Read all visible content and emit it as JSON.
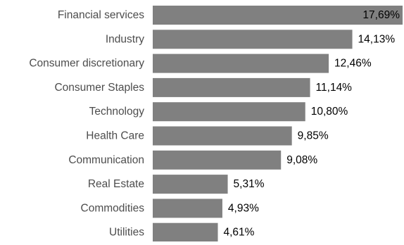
{
  "chart_data": {
    "type": "bar",
    "orientation": "horizontal",
    "categories": [
      "Financial services",
      "Industry",
      "Consumer discretionary",
      "Consumer Staples",
      "Technology",
      "Health Care",
      "Communication",
      "Real Estate",
      "Commodities",
      "Utilities"
    ],
    "values": [
      17.69,
      14.13,
      12.46,
      11.14,
      10.8,
      9.85,
      9.08,
      5.31,
      4.93,
      4.61
    ],
    "value_labels": [
      "17,69%",
      "14,13%",
      "12,46%",
      "11,14%",
      "10,80%",
      "9,85%",
      "9,08%",
      "5,31%",
      "4,93%",
      "4,61%"
    ],
    "unit": "%",
    "xlim": [
      0,
      17.69
    ],
    "grid": false,
    "legend": "none",
    "title": "",
    "xlabel": "",
    "ylabel": ""
  },
  "colors": {
    "bar": "#808080",
    "category_text": "#4d4d4d",
    "value_text": "#000000",
    "background": "#ffffff"
  }
}
